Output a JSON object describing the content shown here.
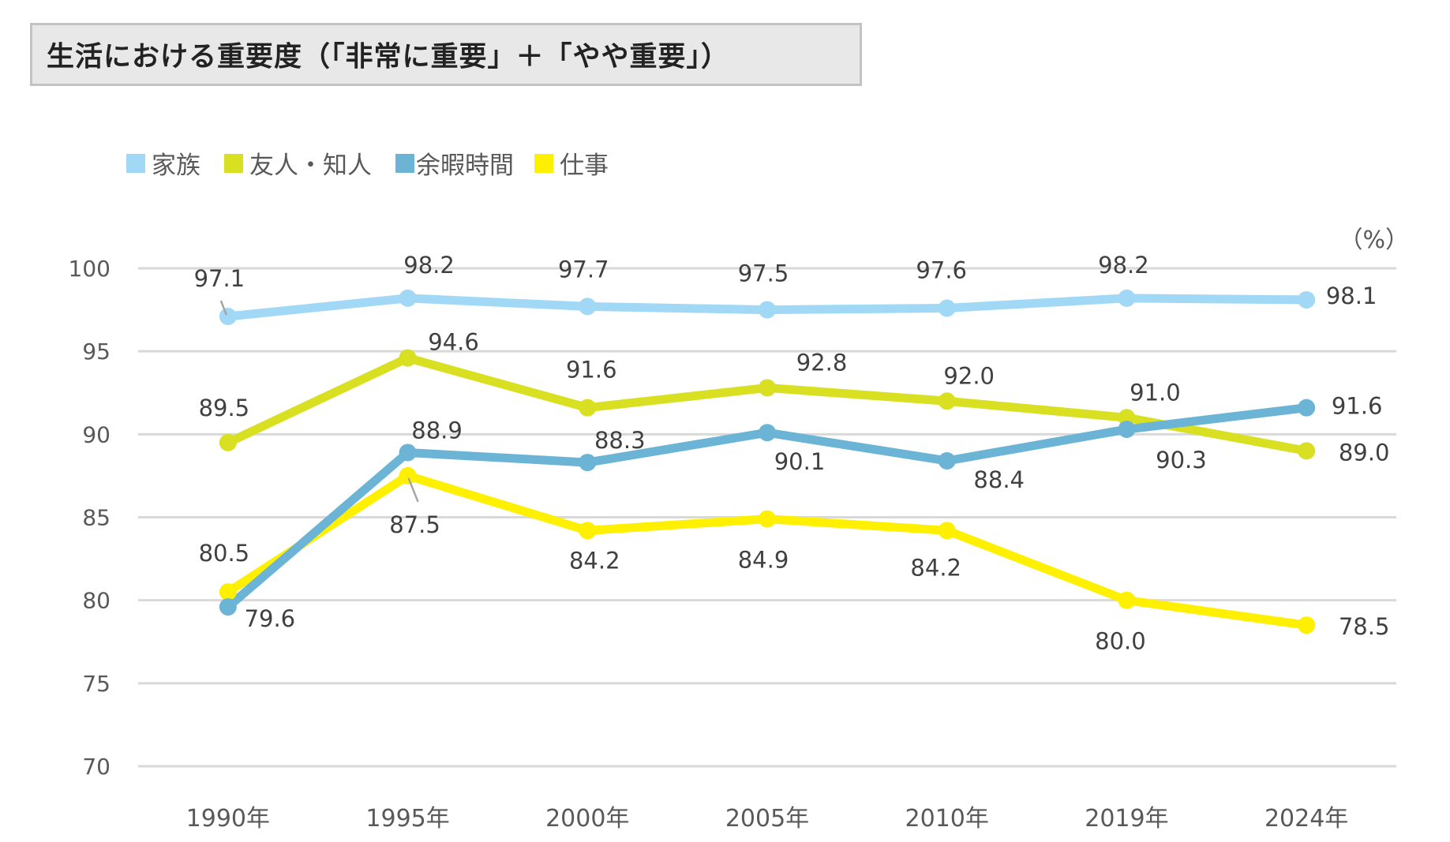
{
  "title": "生活における重要度（「非常に重要」＋「やや重要」）",
  "unit_label": "（%）",
  "chart_data": {
    "type": "line",
    "title": "生活における重要度（「非常に重要」＋「やや重要」）",
    "xlabel": "",
    "ylabel": "（%）",
    "ylim": [
      70,
      100
    ],
    "yticks": [
      100,
      95,
      90,
      85,
      80,
      75,
      70
    ],
    "grid": true,
    "legend_position": "top-left",
    "categories": [
      "1990年",
      "1995年",
      "2000年",
      "2005年",
      "2010年",
      "2019年",
      "2024年"
    ],
    "series": [
      {
        "name": "家族",
        "color": "#a0d8f5",
        "values": [
          97.1,
          98.2,
          97.7,
          97.5,
          97.6,
          98.2,
          98.1
        ],
        "labels": [
          "97.1",
          "98.2",
          "97.7",
          "97.5",
          "97.6",
          "98.2",
          "98.1"
        ]
      },
      {
        "name": "友人・知人",
        "color": "#d9e021",
        "values": [
          89.5,
          94.6,
          91.6,
          92.8,
          92.0,
          91.0,
          89.0
        ],
        "labels": [
          "89.5",
          "94.6",
          "91.6",
          "92.8",
          "92.0",
          "91.0",
          "89.0"
        ]
      },
      {
        "name": "余暇時間",
        "color": "#6cb4d5",
        "values": [
          79.6,
          88.9,
          88.3,
          90.1,
          88.4,
          90.3,
          91.6
        ],
        "labels": [
          "79.6",
          "88.9",
          "88.3",
          "90.1",
          "88.4",
          "90.3",
          "91.6"
        ]
      },
      {
        "name": "仕事",
        "color": "#fff000",
        "values": [
          80.5,
          87.5,
          84.2,
          84.9,
          84.2,
          80.0,
          78.5
        ],
        "labels": [
          "80.5",
          "87.5",
          "84.2",
          "84.9",
          "84.2",
          "80.0",
          "78.5"
        ]
      }
    ]
  }
}
